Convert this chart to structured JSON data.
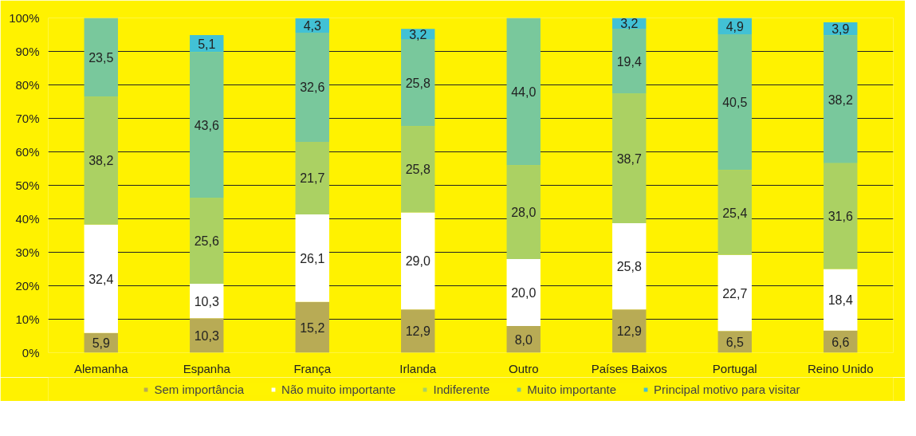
{
  "chart_data": {
    "type": "bar",
    "stacked": true,
    "categories": [
      "Alemanha",
      "Espanha",
      "França",
      "Irlanda",
      "Outro",
      "Países Baixos",
      "Portugal",
      "Reino Unido"
    ],
    "series": [
      {
        "name": "Sem importância",
        "color": "#b8ab55",
        "values": [
          5.9,
          10.3,
          15.2,
          12.9,
          8.0,
          12.9,
          6.5,
          6.6
        ],
        "value_labels": [
          "5,9",
          "10,3",
          "15,2",
          "12,9",
          "8,0",
          "12,9",
          "6,5",
          "6,6"
        ]
      },
      {
        "name": "Não muito importante",
        "color": "#ffffff",
        "values": [
          32.4,
          10.3,
          26.1,
          29.0,
          20.0,
          25.8,
          22.7,
          18.4
        ],
        "value_labels": [
          "32,4",
          "10,3",
          "26,1",
          "29,0",
          "20,0",
          "25,8",
          "22,7",
          "18,4"
        ]
      },
      {
        "name": "Indiferente",
        "color": "#abd163",
        "values": [
          38.2,
          25.6,
          21.7,
          25.8,
          28.0,
          38.7,
          25.4,
          31.6
        ],
        "value_labels": [
          "38,2",
          "25,6",
          "21,7",
          "25,8",
          "28,0",
          "38,7",
          "25,4",
          "31,6"
        ]
      },
      {
        "name": "Muito importante",
        "color": "#79c89c",
        "values": [
          23.5,
          43.6,
          32.6,
          25.8,
          44.0,
          19.4,
          40.5,
          38.2
        ],
        "value_labels": [
          "23,5",
          "43,6",
          "32,6",
          "25,8",
          "44,0",
          "19,4",
          "40,5",
          "38,2"
        ]
      },
      {
        "name": "Principal motivo para visitar",
        "color": "#42c1d5",
        "values": [
          null,
          5.1,
          4.3,
          3.2,
          null,
          3.2,
          4.9,
          3.9
        ],
        "value_labels": [
          null,
          "5,1",
          "4,3",
          "3,2",
          null,
          "3,2",
          "4,9",
          "3,9"
        ]
      }
    ],
    "ylim": [
      0,
      100
    ],
    "yticks": [
      {
        "value": 0,
        "label": "0%"
      },
      {
        "value": 10,
        "label": "10%"
      },
      {
        "value": 20,
        "label": "20%"
      },
      {
        "value": 30,
        "label": "30%"
      },
      {
        "value": 40,
        "label": "40%"
      },
      {
        "value": 50,
        "label": "50%"
      },
      {
        "value": 60,
        "label": "60%"
      },
      {
        "value": 70,
        "label": "70%"
      },
      {
        "value": 80,
        "label": "80%"
      },
      {
        "value": 90,
        "label": "90%"
      },
      {
        "value": 100,
        "label": "100%"
      }
    ],
    "grid": "y",
    "legend": "bottom"
  }
}
